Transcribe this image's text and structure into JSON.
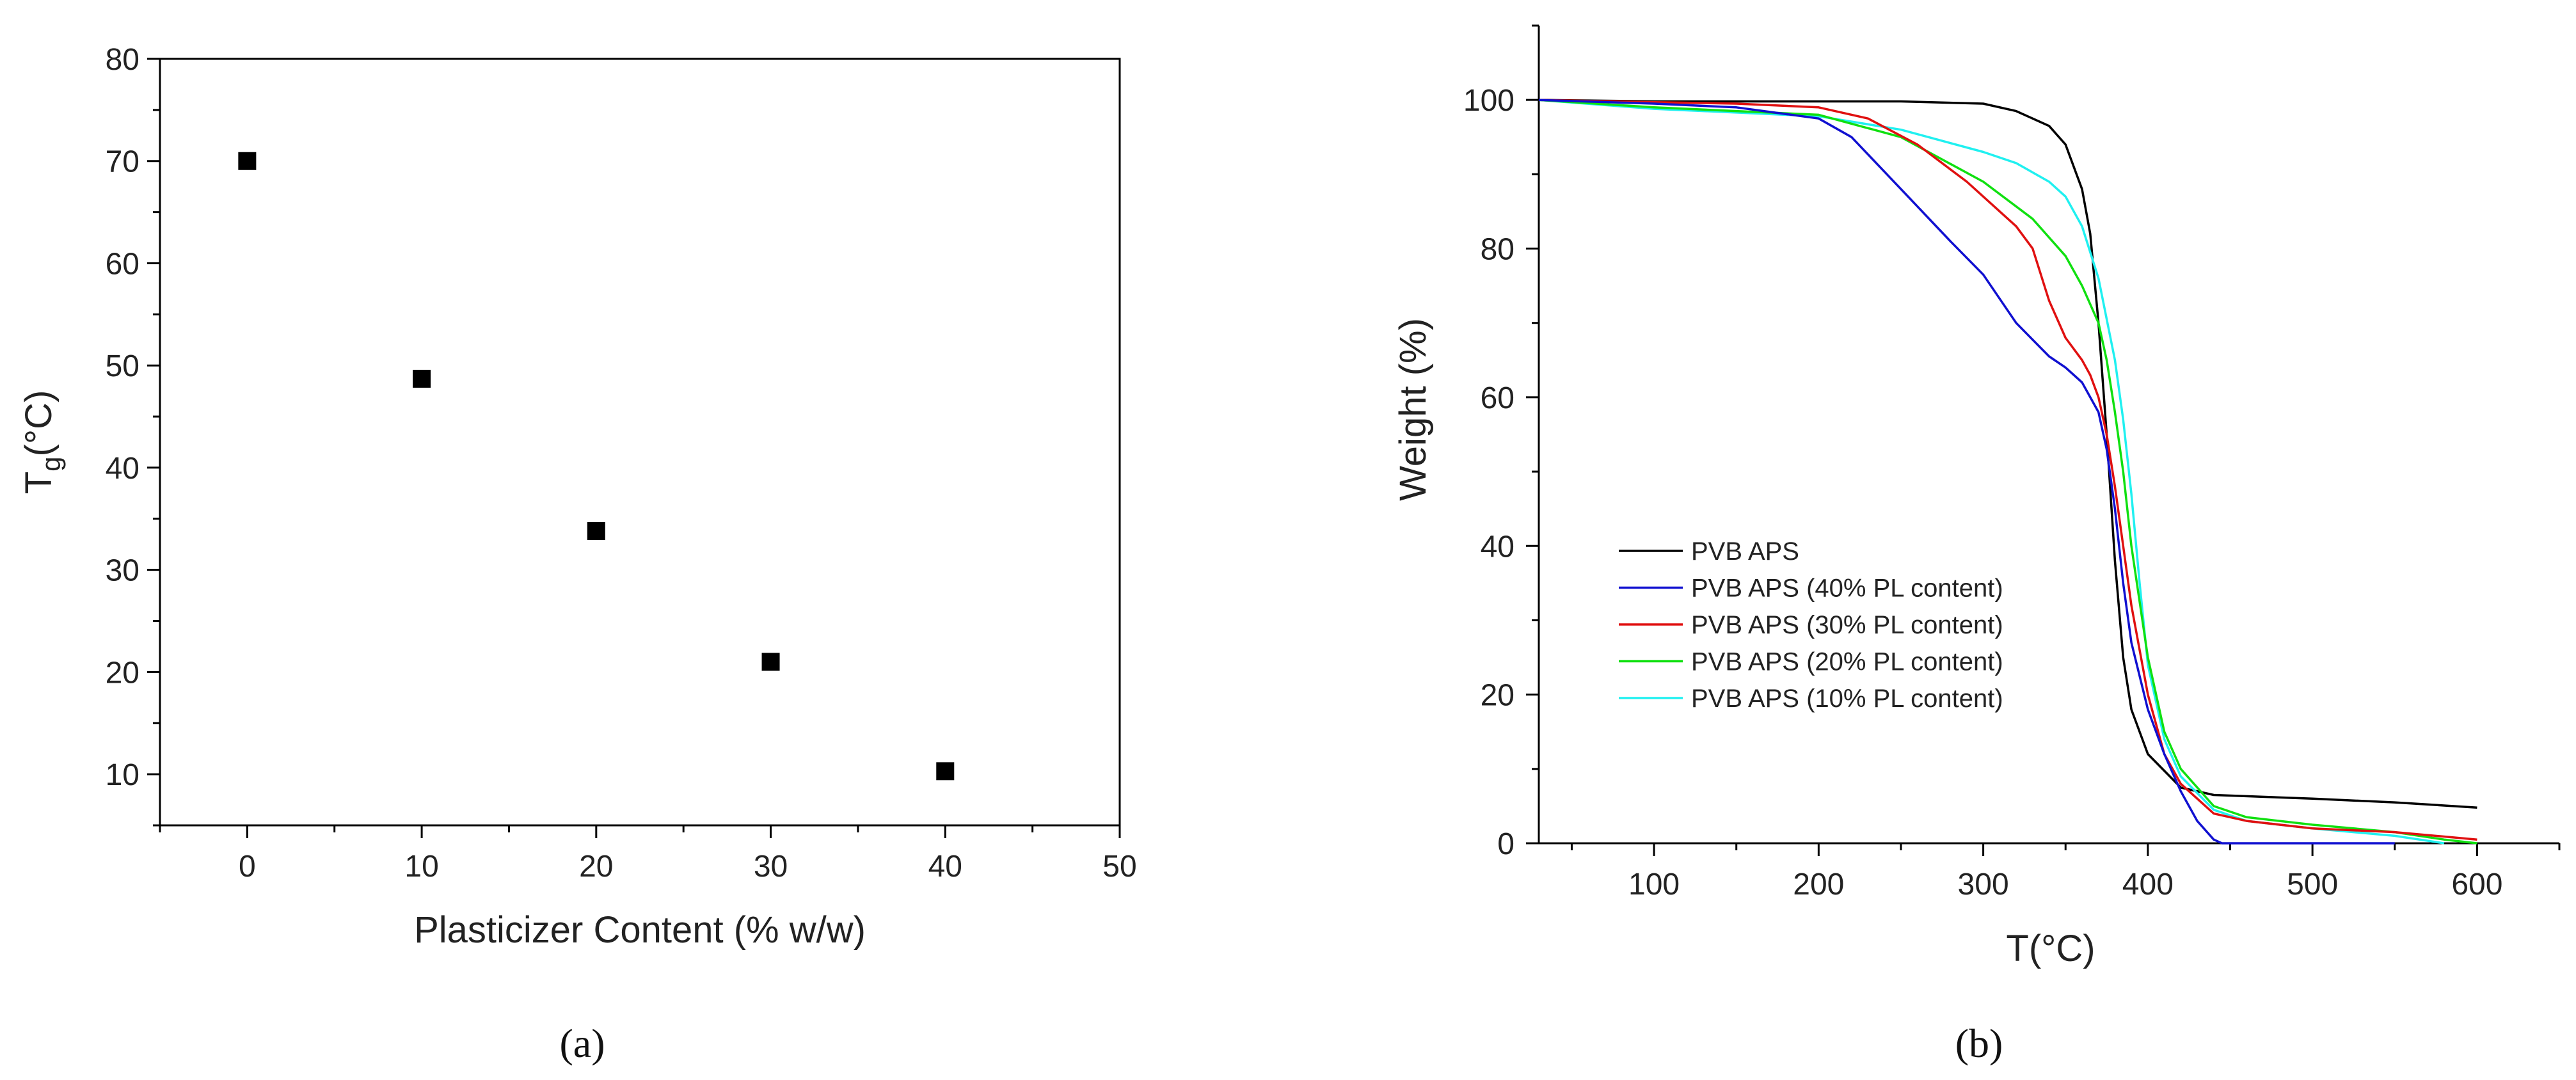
{
  "chart_data": [
    {
      "type": "scatter",
      "panel": "a",
      "caption": "(a)",
      "title": "",
      "xlabel": "Plasticizer Content (% w/w)",
      "ylabel_main": "T",
      "ylabel_sub": "g",
      "ylabel_rest": "(°C)",
      "xlim": [
        -5,
        50
      ],
      "ylim": [
        5,
        80
      ],
      "x_ticks": [
        0,
        10,
        20,
        30,
        40,
        50
      ],
      "y_ticks": [
        10,
        20,
        30,
        40,
        50,
        60,
        70,
        80
      ],
      "marker_color": "#000000",
      "points": [
        {
          "x": 0,
          "y": 70
        },
        {
          "x": 10,
          "y": 48.7
        },
        {
          "x": 20,
          "y": 33.8
        },
        {
          "x": 30,
          "y": 21
        },
        {
          "x": 40,
          "y": 10.3
        }
      ]
    },
    {
      "type": "line",
      "panel": "b",
      "caption": "(b)",
      "title": "",
      "xlabel": "T(°C)",
      "ylabel": "Weight (%)",
      "xlim": [
        30,
        650
      ],
      "ylim": [
        0,
        110
      ],
      "x_ticks": [
        100,
        200,
        300,
        400,
        500,
        600
      ],
      "y_ticks": [
        0,
        20,
        40,
        60,
        80,
        100
      ],
      "legend_position": "lower-left",
      "series": [
        {
          "name": "PVB APS",
          "color": "#000000",
          "x": [
            30,
            100,
            200,
            250,
            300,
            320,
            340,
            350,
            360,
            365,
            370,
            375,
            380,
            385,
            390,
            400,
            420,
            440,
            500,
            550,
            600
          ],
          "y": [
            100,
            99.8,
            99.8,
            99.8,
            99.5,
            98.5,
            96.5,
            94,
            88,
            82,
            70,
            55,
            38,
            25,
            18,
            12,
            7.5,
            6.5,
            6,
            5.5,
            4.8
          ]
        },
        {
          "name": "PVB APS (40% PL content)",
          "color": "#1010d0",
          "x": [
            30,
            100,
            150,
            200,
            220,
            250,
            280,
            300,
            320,
            340,
            350,
            360,
            370,
            375,
            380,
            385,
            390,
            400,
            410,
            420,
            430,
            440,
            445,
            500,
            550
          ],
          "y": [
            100,
            99.5,
            99,
            97.5,
            95,
            88,
            81,
            76.5,
            70,
            65.5,
            64,
            62,
            58,
            53,
            45,
            35,
            27,
            18,
            12,
            7,
            3,
            0.5,
            0,
            0,
            0
          ]
        },
        {
          "name": "PVB APS (30% PL content)",
          "color": "#e01010",
          "x": [
            30,
            100,
            150,
            200,
            230,
            260,
            290,
            320,
            330,
            340,
            350,
            360,
            365,
            370,
            375,
            380,
            385,
            390,
            400,
            410,
            420,
            440,
            460,
            500,
            550,
            600
          ],
          "y": [
            100,
            99.7,
            99.5,
            99,
            97.5,
            94,
            89,
            83,
            80,
            73,
            68,
            65,
            63,
            60,
            55,
            48,
            40,
            32,
            20,
            12,
            8,
            4,
            3,
            2,
            1.5,
            0.5
          ]
        },
        {
          "name": "PVB APS (20% PL content)",
          "color": "#10e010",
          "x": [
            30,
            100,
            150,
            200,
            250,
            300,
            330,
            350,
            360,
            370,
            375,
            380,
            385,
            390,
            400,
            410,
            420,
            440,
            460,
            500,
            550,
            580,
            600
          ],
          "y": [
            100,
            99,
            98.5,
            98,
            95,
            89,
            84,
            79,
            75,
            70,
            65,
            58,
            50,
            40,
            25,
            15,
            10,
            5,
            3.5,
            2.5,
            1.5,
            0.5,
            0
          ]
        },
        {
          "name": "PVB APS (10% PL content)",
          "color": "#20f0f0",
          "x": [
            30,
            100,
            150,
            200,
            250,
            300,
            320,
            340,
            350,
            360,
            370,
            380,
            385,
            390,
            395,
            400,
            410,
            420,
            440,
            460,
            500,
            550,
            580
          ],
          "y": [
            100,
            98.8,
            98.3,
            97.8,
            96,
            93,
            91.5,
            89,
            87,
            83,
            76,
            65,
            57,
            47,
            35,
            24,
            14,
            9,
            4.5,
            3,
            2,
            1,
            0
          ]
        }
      ]
    }
  ]
}
